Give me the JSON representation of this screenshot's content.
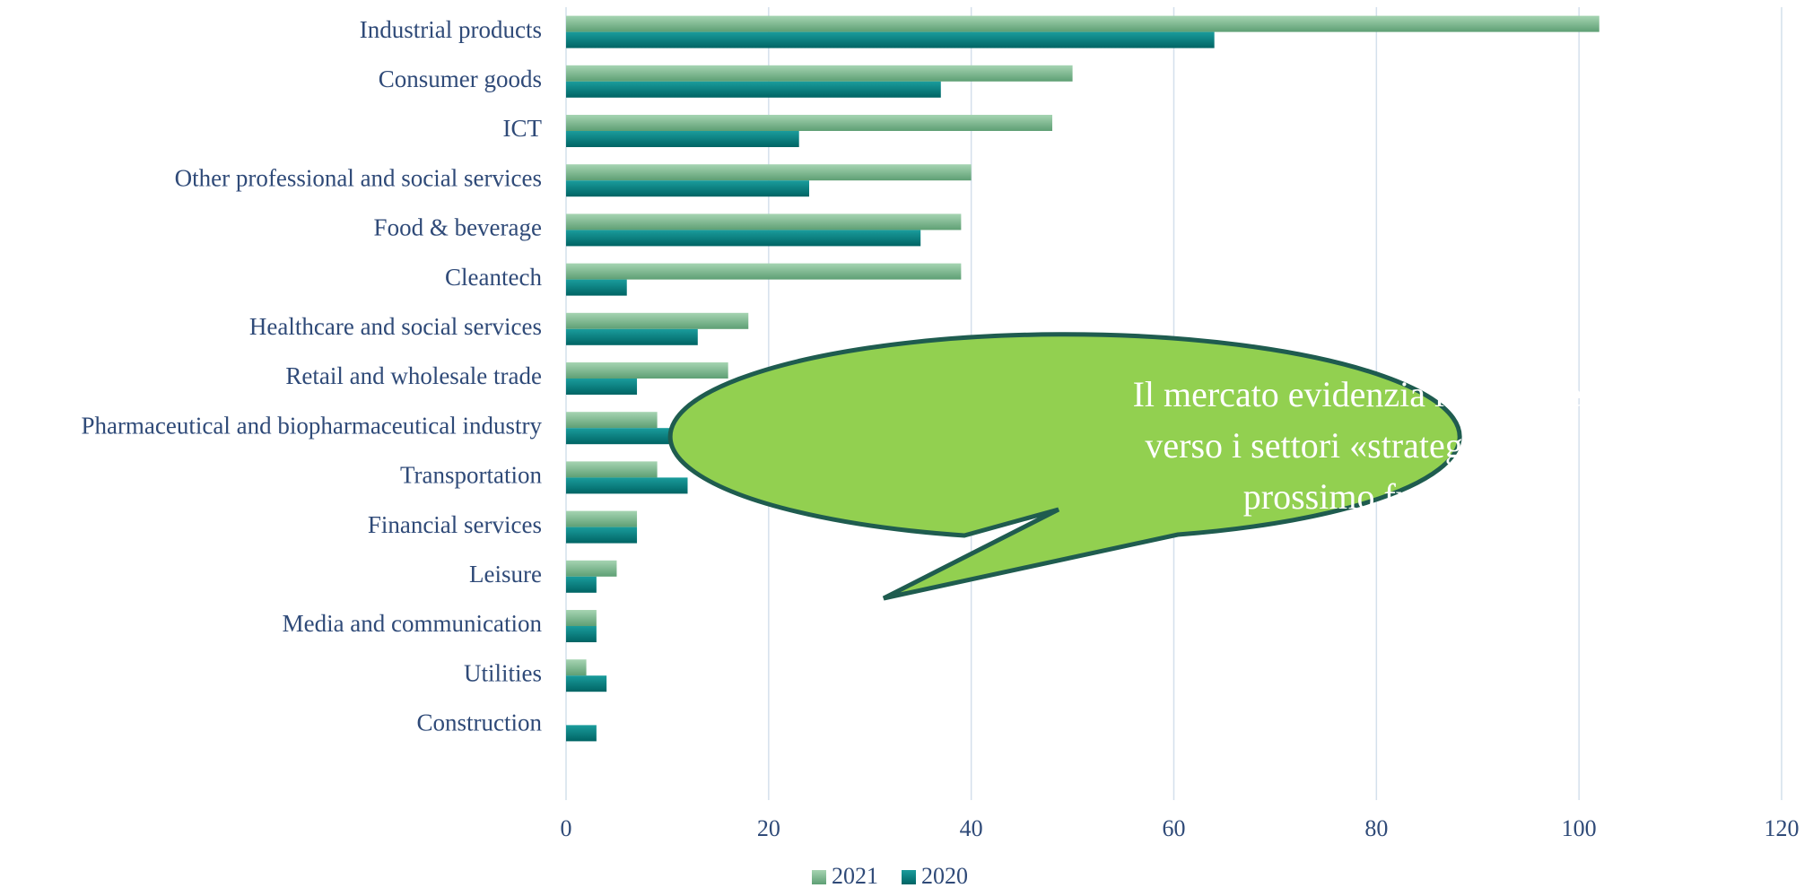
{
  "chart_data": {
    "type": "bar",
    "orientation": "horizontal",
    "categories": [
      "Industrial products",
      "Consumer goods",
      "ICT",
      "Other professional and social services",
      "Food & beverage",
      "Cleantech",
      "Healthcare and social services",
      "Retail and wholesale trade",
      "Pharmaceutical and biopharmaceutical industry",
      "Transportation",
      "Financial services",
      "Leisure",
      "Media and  communication",
      "Utilities",
      "Construction"
    ],
    "series": [
      {
        "name": "2021",
        "color": "#7dbb91",
        "values": [
          102,
          50,
          48,
          40,
          39,
          39,
          18,
          16,
          9,
          9,
          7,
          5,
          3,
          2,
          0
        ]
      },
      {
        "name": "2020",
        "color": "#0a8080",
        "values": [
          64,
          37,
          23,
          24,
          35,
          6,
          13,
          7,
          12,
          12,
          7,
          3,
          3,
          4,
          3
        ]
      }
    ],
    "xlim": [
      0,
      120
    ],
    "xticks": [
      0,
      20,
      40,
      60,
      80,
      100,
      120
    ],
    "grid": true,
    "legend": "bottom",
    "annotation": [
      "Il mercato evidenzia l’interesse",
      "verso i settori «strategici» del",
      "prossimo futuro"
    ]
  }
}
